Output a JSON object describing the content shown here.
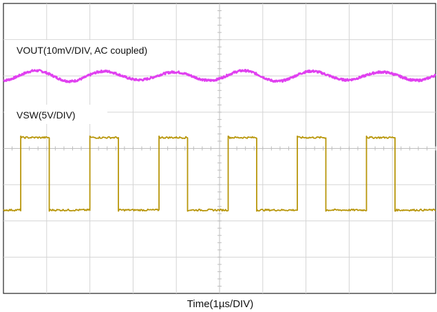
{
  "chart_data": {
    "type": "line",
    "title": "",
    "xlabel": "Time(1µs/DIV)",
    "ylabel": "",
    "grid": true,
    "divisions": {
      "x": 10,
      "y": 8
    },
    "xlim": [
      0,
      10
    ],
    "ylim": [
      0,
      8
    ],
    "series": [
      {
        "name": "VOUT(10mV/DIV, AC coupled)",
        "color": "#e040f0",
        "kind": "ripple",
        "baseline_div": 6.0,
        "amplitude_div": 0.15,
        "period_div": 1.6
      },
      {
        "name": "VSW(5V/DIV)",
        "color": "#b8960a",
        "kind": "square",
        "high_div": 4.3,
        "low_div": 2.3,
        "period_div": 1.6,
        "first_rise_div": 0.4,
        "pulse_width_div": 0.66
      }
    ]
  }
}
